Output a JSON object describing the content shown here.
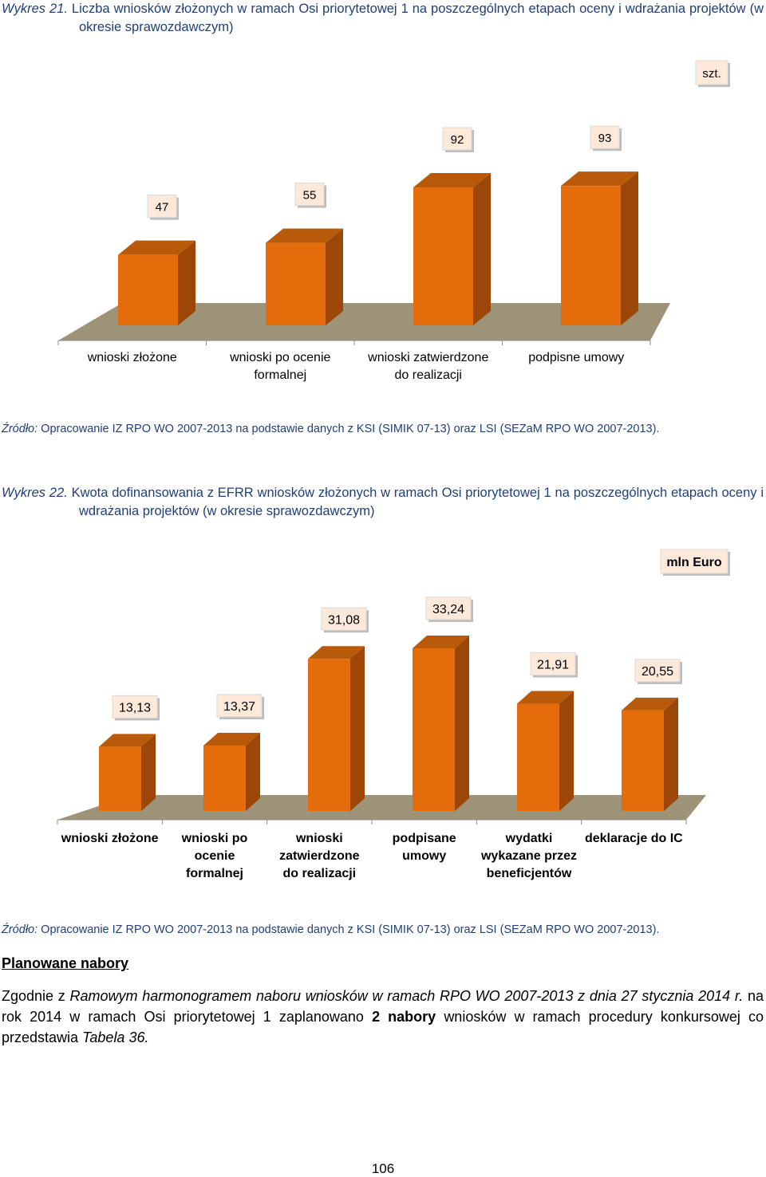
{
  "chart1": {
    "caption_lead": "Wykres 21.",
    "caption_text": "Liczba wniosków złożonych w ramach Osi priorytetowej 1 na poszczególnych etapach oceny i wdrażania projektów (w okresie sprawozdawczym)",
    "unit": "szt.",
    "source_lead": "Źródło:",
    "source_text": "Opracowanie IZ RPO WO 2007-2013 na podstawie danych z KSI (SIMIK 07-13) oraz LSI (SEZaM RPO WO 2007-2013)."
  },
  "chart2": {
    "caption_lead": "Wykres 22.",
    "caption_text": "Kwota dofinansowania z EFRR wniosków złożonych w ramach Osi priorytetowej 1 na poszczególnych etapach oceny i wdrażania projektów (w okresie sprawozdawczym)",
    "unit": "mln Euro",
    "source_lead": "Źródło:",
    "source_text": "Opracowanie IZ RPO WO 2007-2013 na podstawie danych z KSI (SIMIK 07-13) oraz LSI (SEZaM RPO WO 2007-2013)."
  },
  "section": {
    "heading": "Planowane nabory",
    "para_1": "Zgodnie z",
    "para_2_italic": "Ramowym harmonogramem naboru wniosków w ramach RPO WO 2007-2013 z dnia 27 stycznia 2014 r.",
    "para_3": "na rok 2014 w ramach Osi priorytetowej 1 zaplanowano",
    "para_4_bold": "2 nabory",
    "para_5": "wniosków w ramach procedury konkursowej co przedstawia",
    "para_6_italic": "Tabela 36."
  },
  "page_number": "106",
  "colors": {
    "bar_front": "#e46c0a",
    "bar_side": "#9c4608",
    "bar_top": "#b85a0a",
    "floor": "#9c9379",
    "label_box": "#fde9d9",
    "caption": "#1f3f7a"
  },
  "chart_data": [
    {
      "type": "bar",
      "title": "Liczba wniosków złożonych w ramach Osi priorytetowej 1 na poszczególnych etapach oceny i wdrażania projektów (w okresie sprawozdawczym)",
      "unit": "szt.",
      "categories": [
        [
          "wnioski złożone"
        ],
        [
          "wnioski po ocenie",
          "formalnej"
        ],
        [
          "wnioski zatwierdzone",
          "do realizacji"
        ],
        [
          "podpisne umowy"
        ]
      ],
      "values": [
        47,
        55,
        92,
        93
      ],
      "value_labels": [
        "47",
        "55",
        "92",
        "93"
      ],
      "style": "3d-column",
      "grid": false
    },
    {
      "type": "bar",
      "title": "Kwota dofinansowania z EFRR wniosków złożonych w ramach Osi priorytetowej 1 na poszczególnych etapach oceny i wdrażania projektów (w okresie sprawozdawczym)",
      "unit": "mln Euro",
      "categories": [
        [
          "wnioski złożone"
        ],
        [
          "wnioski po",
          "ocenie",
          "formalnej"
        ],
        [
          "wnioski",
          "zatwierdzone",
          "do realizacji"
        ],
        [
          "podpisane",
          "umowy"
        ],
        [
          "wydatki",
          "wykazane przez",
          "beneficjentów"
        ],
        [
          "deklaracje do IC"
        ]
      ],
      "values": [
        13.13,
        13.37,
        31.08,
        33.24,
        21.91,
        20.55
      ],
      "value_labels": [
        "13,13",
        "13,37",
        "31,08",
        "33,24",
        "21,91",
        "20,55"
      ],
      "style": "3d-column",
      "grid": false
    }
  ]
}
